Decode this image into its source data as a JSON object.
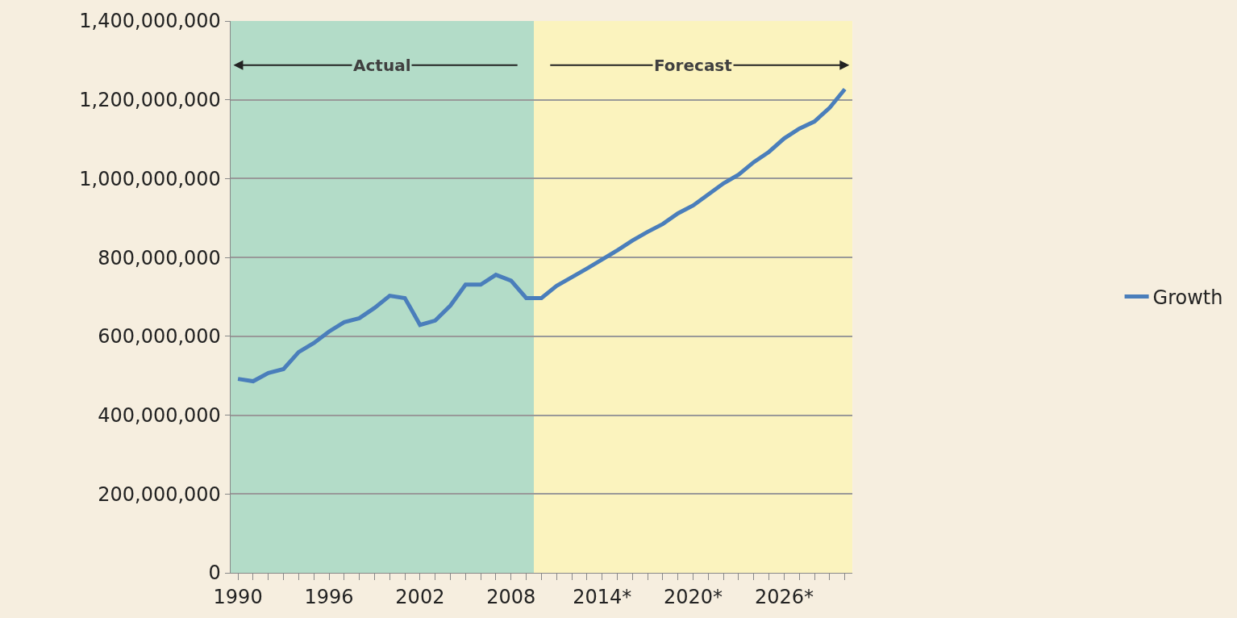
{
  "chart_data": {
    "type": "line",
    "x": [
      1990,
      1991,
      1992,
      1993,
      1994,
      1995,
      1996,
      1997,
      1998,
      1999,
      2000,
      2001,
      2002,
      2003,
      2004,
      2005,
      2006,
      2007,
      2008,
      2009,
      2010,
      2011,
      2012,
      2013,
      2014,
      2015,
      2016,
      2017,
      2018,
      2019,
      2020,
      2021,
      2022,
      2023,
      2024,
      2025,
      2026,
      2027,
      2028,
      2029,
      2030
    ],
    "series": [
      {
        "name": "Growth",
        "color": "#4a7ebb",
        "values": [
          492000000,
          486000000,
          507000000,
          517000000,
          560000000,
          583000000,
          612000000,
          636000000,
          646000000,
          672000000,
          703000000,
          697000000,
          629000000,
          640000000,
          678000000,
          731000000,
          731000000,
          756000000,
          741000000,
          697000000,
          697000000,
          728000000,
          750000000,
          772000000,
          795000000,
          818000000,
          843000000,
          865000000,
          885000000,
          912000000,
          932000000,
          960000000,
          988000000,
          1010000000,
          1042000000,
          1068000000,
          1102000000,
          1127000000,
          1145000000,
          1180000000,
          1227000000
        ]
      }
    ],
    "xlim": [
      1989.5,
      2030.5
    ],
    "xticks": [
      {
        "value": 1990,
        "label": "1990"
      },
      {
        "value": 1991,
        "label": null
      },
      {
        "value": 1992,
        "label": null
      },
      {
        "value": 1993,
        "label": null
      },
      {
        "value": 1994,
        "label": null
      },
      {
        "value": 1995,
        "label": null
      },
      {
        "value": 1996,
        "label": "1996"
      },
      {
        "value": 1997,
        "label": null
      },
      {
        "value": 1998,
        "label": null
      },
      {
        "value": 1999,
        "label": null
      },
      {
        "value": 2000,
        "label": null
      },
      {
        "value": 2001,
        "label": null
      },
      {
        "value": 2002,
        "label": "2002"
      },
      {
        "value": 2003,
        "label": null
      },
      {
        "value": 2004,
        "label": null
      },
      {
        "value": 2005,
        "label": null
      },
      {
        "value": 2006,
        "label": null
      },
      {
        "value": 2007,
        "label": null
      },
      {
        "value": 2008,
        "label": "2008"
      },
      {
        "value": 2009,
        "label": null
      },
      {
        "value": 2010,
        "label": null
      },
      {
        "value": 2011,
        "label": null
      },
      {
        "value": 2012,
        "label": null
      },
      {
        "value": 2013,
        "label": null
      },
      {
        "value": 2014,
        "label": "2014*"
      },
      {
        "value": 2015,
        "label": null
      },
      {
        "value": 2016,
        "label": null
      },
      {
        "value": 2017,
        "label": null
      },
      {
        "value": 2018,
        "label": null
      },
      {
        "value": 2019,
        "label": null
      },
      {
        "value": 2020,
        "label": "2020*"
      },
      {
        "value": 2021,
        "label": null
      },
      {
        "value": 2022,
        "label": null
      },
      {
        "value": 2023,
        "label": null
      },
      {
        "value": 2024,
        "label": null
      },
      {
        "value": 2025,
        "label": null
      },
      {
        "value": 2026,
        "label": "2026*"
      },
      {
        "value": 2027,
        "label": null
      },
      {
        "value": 2028,
        "label": null
      },
      {
        "value": 2029,
        "label": null
      },
      {
        "value": 2030,
        "label": null
      }
    ],
    "ylim": [
      0,
      1400000000
    ],
    "yticks": [
      {
        "value": 0,
        "label": "0"
      },
      {
        "value": 200000000,
        "label": "200,000,000"
      },
      {
        "value": 400000000,
        "label": "400,000,000"
      },
      {
        "value": 600000000,
        "label": "600,000,000"
      },
      {
        "value": 800000000,
        "label": "800,000,000"
      },
      {
        "value": 1000000000,
        "label": "1,000,000,000"
      },
      {
        "value": 1200000000,
        "label": "1,200,000,000"
      },
      {
        "value": 1400000000,
        "label": "1,400,000,000"
      }
    ],
    "bands": [
      {
        "axis": "x",
        "from": 1989.5,
        "to": 2009.5,
        "label": "Actual",
        "color": "#b3dcc8"
      },
      {
        "axis": "x",
        "from": 2009.5,
        "to": 2030.5,
        "label": "Forecast",
        "color": "#fbf3be"
      }
    ],
    "grid": "y",
    "legend": "right",
    "marker": "none",
    "line_style": "solid"
  }
}
